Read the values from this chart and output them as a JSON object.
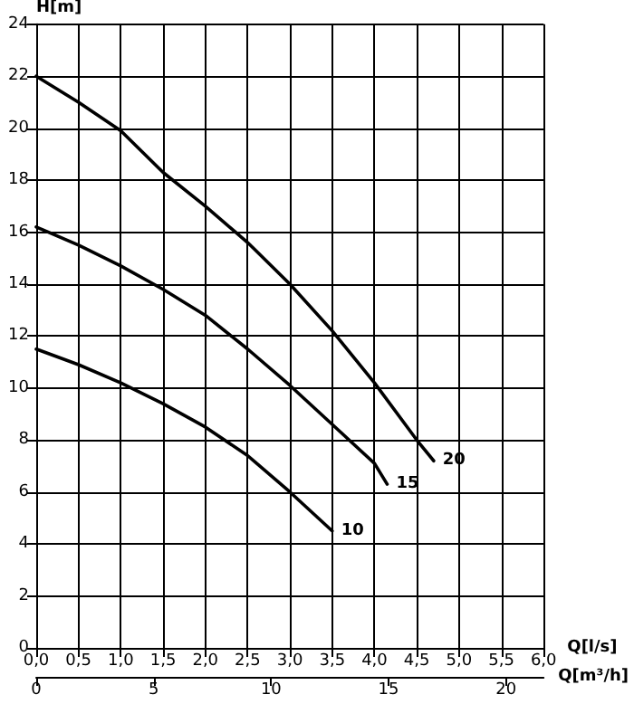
{
  "chart_data": {
    "type": "line",
    "xlabel": "Q[l/s]",
    "ylabel": "H[m]",
    "x2label": "Q[m³/h]",
    "xlim": [
      0,
      6
    ],
    "xticks": [
      {
        "value": 0,
        "label": "0,0"
      },
      {
        "value": 0.5,
        "label": "0,5"
      },
      {
        "value": 1,
        "label": "1,0"
      },
      {
        "value": 1.5,
        "label": "1,5"
      },
      {
        "value": 2,
        "label": "2,0"
      },
      {
        "value": 2.5,
        "label": "2,5"
      },
      {
        "value": 3,
        "label": "3,0"
      },
      {
        "value": 3.5,
        "label": "3,5"
      },
      {
        "value": 4,
        "label": "4,0"
      },
      {
        "value": 4.5,
        "label": "4,5"
      },
      {
        "value": 5,
        "label": "5,0"
      },
      {
        "value": 5.5,
        "label": "5,5"
      },
      {
        "value": 6,
        "label": "6,0"
      }
    ],
    "x2lim": [
      0,
      21.6
    ],
    "x2ticks": [
      0,
      5,
      10,
      15,
      20
    ],
    "ylim": [
      0,
      24
    ],
    "yticks": [
      0,
      2,
      4,
      6,
      8,
      10,
      12,
      14,
      16,
      18,
      20,
      22,
      24
    ],
    "grid": true,
    "marker": "none",
    "line_style": "solid",
    "legend": false,
    "series": [
      {
        "name": "20",
        "color": "#000000",
        "x": [
          0,
          0.5,
          1,
          1.5,
          2,
          2.5,
          3,
          3.5,
          4,
          4.5,
          4.7
        ],
        "values": [
          22,
          21,
          19.9,
          18.3,
          17,
          15.6,
          14,
          12.2,
          10.2,
          8,
          7.2
        ]
      },
      {
        "name": "15",
        "color": "#000000",
        "x": [
          0,
          0.5,
          1,
          1.5,
          2,
          2.5,
          3,
          3.5,
          4,
          4.15
        ],
        "values": [
          16.2,
          15.5,
          14.7,
          13.8,
          12.8,
          11.5,
          10.1,
          8.6,
          7.1,
          6.3
        ]
      },
      {
        "name": "10",
        "color": "#000000",
        "x": [
          0,
          0.5,
          1,
          1.5,
          2,
          2.5,
          3,
          3.5
        ],
        "values": [
          11.5,
          10.9,
          10.2,
          9.4,
          8.5,
          7.4,
          6,
          4.5
        ]
      }
    ]
  }
}
